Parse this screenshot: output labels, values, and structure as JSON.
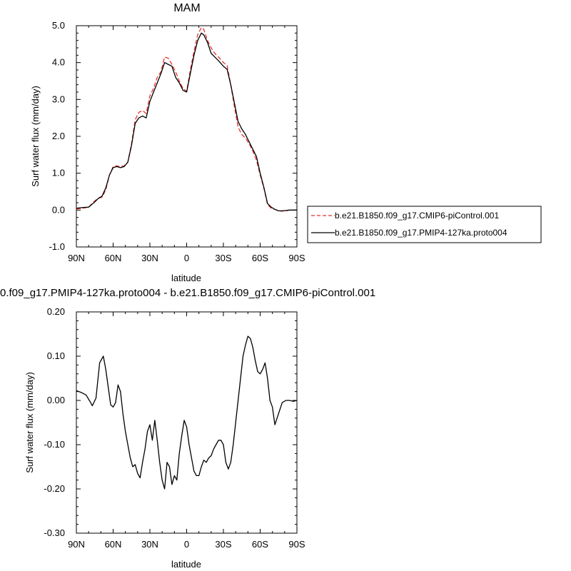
{
  "chart_data": [
    {
      "type": "line",
      "title": "MAM",
      "xlabel": "latitude",
      "ylabel": "Surf water flux (mm/day)",
      "x_tick_labels": [
        "90N",
        "60N",
        "30N",
        "0",
        "30S",
        "60S",
        "90S"
      ],
      "x_tick_values": [
        90,
        60,
        30,
        0,
        -30,
        -60,
        -90
      ],
      "xlim": [
        90,
        -90
      ],
      "y_tick_labels": [
        "-1.0",
        "0.0",
        "1.0",
        "2.0",
        "3.0",
        "4.0",
        "5.0"
      ],
      "y_tick_values": [
        -1,
        0,
        1,
        2,
        3,
        4,
        5
      ],
      "ylim": [
        -1,
        5
      ],
      "grid": false,
      "legend_position": "right",
      "series": [
        {
          "name": "b.e21.B1850.f09_g17.CMIP6-piControl.001",
          "color": "#e8312f",
          "style": "dashed",
          "x": [
            90,
            85,
            80,
            75,
            72,
            69,
            66,
            63,
            60,
            57,
            54,
            51,
            48,
            45,
            42,
            39,
            36,
            33,
            30,
            27,
            24,
            21,
            18,
            15,
            12,
            9,
            6,
            3,
            0,
            -3,
            -6,
            -9,
            -12,
            -14,
            -17,
            -20,
            -23,
            -26,
            -30,
            -33,
            -36,
            -39,
            -42,
            -45,
            -48,
            -51,
            -54,
            -57,
            -60,
            -63,
            -66,
            -69,
            -72,
            -75,
            -78,
            -81,
            -84,
            -87,
            -90
          ],
          "y": [
            0.03,
            0.05,
            0.08,
            0.25,
            0.32,
            0.35,
            0.55,
            0.95,
            1.18,
            1.2,
            1.18,
            1.2,
            1.3,
            1.8,
            2.45,
            2.65,
            2.7,
            2.62,
            3.1,
            3.3,
            3.6,
            3.75,
            4.15,
            4.12,
            3.95,
            3.75,
            3.5,
            3.3,
            3.22,
            3.8,
            4.3,
            4.75,
            4.95,
            4.9,
            4.6,
            4.4,
            4.25,
            4.15,
            4.0,
            3.92,
            3.4,
            2.8,
            2.25,
            2.05,
            1.95,
            1.8,
            1.6,
            1.35,
            0.95,
            0.6,
            0.15,
            0.05,
            0.02,
            -0.02,
            -0.03,
            -0.02,
            0.0,
            0.0,
            0.0
          ]
        },
        {
          "name": "b.e21.B1850.f09_g17.PMIP4-127ka.proto004",
          "color": "#000000",
          "style": "solid",
          "x": [
            90,
            85,
            80,
            75,
            72,
            69,
            66,
            63,
            60,
            57,
            54,
            51,
            48,
            45,
            42,
            39,
            36,
            33,
            30,
            27,
            24,
            21,
            18,
            15,
            12,
            9,
            6,
            3,
            0,
            -3,
            -6,
            -9,
            -12,
            -14,
            -17,
            -20,
            -23,
            -26,
            -30,
            -33,
            -36,
            -39,
            -42,
            -45,
            -48,
            -51,
            -54,
            -57,
            -60,
            -63,
            -66,
            -69,
            -72,
            -75,
            -78,
            -81,
            -84,
            -87,
            -90
          ],
          "y": [
            0.05,
            0.07,
            0.08,
            0.22,
            0.32,
            0.38,
            0.6,
            0.95,
            1.15,
            1.18,
            1.15,
            1.18,
            1.3,
            1.75,
            2.35,
            2.5,
            2.55,
            2.5,
            2.95,
            3.2,
            3.45,
            3.7,
            4.0,
            3.95,
            3.9,
            3.6,
            3.45,
            3.25,
            3.2,
            3.7,
            4.2,
            4.6,
            4.8,
            4.75,
            4.55,
            4.25,
            4.15,
            4.05,
            3.9,
            3.82,
            3.4,
            2.9,
            2.4,
            2.2,
            2.05,
            1.85,
            1.65,
            1.45,
            1.0,
            0.62,
            0.18,
            0.08,
            0.02,
            -0.02,
            -0.02,
            -0.01,
            0.0,
            0.0,
            0.0
          ]
        }
      ]
    },
    {
      "type": "line",
      "title": "0.f09_g17.PMIP4-127ka.proto004 - b.e21.B1850.f09_g17.CMIP6-piControl.001",
      "xlabel": "latitude",
      "ylabel": "Surf water flux (mm/day)",
      "x_tick_labels": [
        "90N",
        "60N",
        "30N",
        "0",
        "30S",
        "60S",
        "90S"
      ],
      "x_tick_values": [
        90,
        60,
        30,
        0,
        -30,
        -60,
        -90
      ],
      "xlim": [
        90,
        -90
      ],
      "y_tick_labels": [
        "-0.30",
        "-0.20",
        "-0.10",
        "0.00",
        "0.10",
        "0.20"
      ],
      "y_tick_values": [
        -0.3,
        -0.2,
        -0.1,
        0.0,
        0.1,
        0.2
      ],
      "ylim": [
        -0.3,
        0.2
      ],
      "grid": false,
      "series": [
        {
          "color": "#000000",
          "style": "solid",
          "x": [
            90,
            86,
            82,
            79,
            77,
            74,
            71,
            68,
            66,
            64,
            62,
            60,
            58,
            56,
            54,
            52,
            50,
            48,
            46,
            44,
            42,
            40,
            38,
            36,
            34,
            32,
            30,
            28,
            26,
            24,
            22,
            20,
            18,
            16,
            14,
            12,
            10,
            8,
            6,
            4,
            2,
            0,
            -2,
            -4,
            -6,
            -8,
            -10,
            -12,
            -14,
            -16,
            -18,
            -20,
            -22,
            -24,
            -26,
            -28,
            -30,
            -32,
            -34,
            -36,
            -38,
            -40,
            -42,
            -44,
            -46,
            -48,
            -50,
            -52,
            -54,
            -56,
            -58,
            -60,
            -62,
            -64,
            -66,
            -68,
            -70,
            -72,
            -75,
            -78,
            -81,
            -84,
            -87,
            -90
          ],
          "y": [
            0.022,
            0.018,
            0.012,
            -0.002,
            -0.012,
            0.005,
            0.085,
            0.1,
            0.07,
            0.03,
            -0.01,
            -0.015,
            -0.005,
            0.035,
            0.02,
            -0.03,
            -0.07,
            -0.1,
            -0.13,
            -0.15,
            -0.145,
            -0.165,
            -0.175,
            -0.14,
            -0.11,
            -0.07,
            -0.055,
            -0.09,
            -0.045,
            -0.09,
            -0.14,
            -0.18,
            -0.2,
            -0.14,
            -0.15,
            -0.19,
            -0.17,
            -0.18,
            -0.12,
            -0.08,
            -0.045,
            -0.06,
            -0.1,
            -0.13,
            -0.16,
            -0.17,
            -0.17,
            -0.15,
            -0.135,
            -0.14,
            -0.13,
            -0.125,
            -0.11,
            -0.1,
            -0.09,
            -0.09,
            -0.1,
            -0.14,
            -0.155,
            -0.14,
            -0.1,
            -0.05,
            0.0,
            0.05,
            0.1,
            0.125,
            0.145,
            0.14,
            0.12,
            0.09,
            0.065,
            0.06,
            0.07,
            0.085,
            0.05,
            0.0,
            -0.015,
            -0.055,
            -0.03,
            -0.005,
            0.0,
            0.0,
            -0.002,
            0.0
          ]
        }
      ]
    }
  ]
}
